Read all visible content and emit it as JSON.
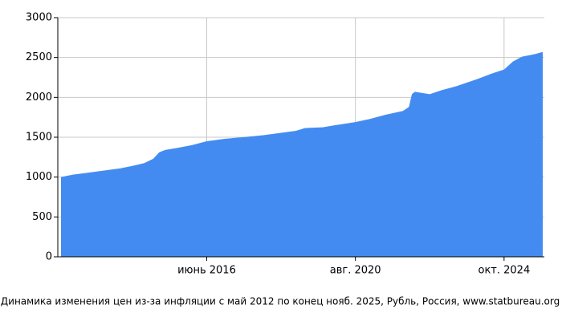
{
  "chart_data": {
    "type": "area",
    "caption": "Динамика изменения цен из-за инфляции с май 2012 по конец нояб. 2025, Рубль, Россия, www.statbureau.org",
    "color": "#448bf1",
    "x": [
      "2012-05",
      "2012-09",
      "2013-01",
      "2013-05",
      "2013-09",
      "2014-01",
      "2014-05",
      "2014-09",
      "2014-12",
      "2015-02",
      "2015-04",
      "2015-08",
      "2016-01",
      "2016-06",
      "2016-12",
      "2017-06",
      "2018-01",
      "2018-06",
      "2018-12",
      "2019-03",
      "2019-09",
      "2020-01",
      "2020-08",
      "2021-01",
      "2021-06",
      "2021-12",
      "2022-02",
      "2022-03",
      "2022-04",
      "2022-09",
      "2023-01",
      "2023-06",
      "2024-01",
      "2024-06",
      "2024-10",
      "2025-01",
      "2025-04",
      "2025-08",
      "2025-11"
    ],
    "values": [
      1000,
      1030,
      1050,
      1070,
      1090,
      1110,
      1140,
      1175,
      1230,
      1310,
      1340,
      1365,
      1400,
      1450,
      1480,
      1500,
      1525,
      1550,
      1580,
      1615,
      1625,
      1650,
      1690,
      1730,
      1780,
      1830,
      1880,
      2040,
      2070,
      2040,
      2090,
      2140,
      2230,
      2300,
      2350,
      2450,
      2510,
      2540,
      2570
    ],
    "xlim": [
      "2012-05",
      "2025-11"
    ],
    "xticks": [
      {
        "value": "2016-06",
        "label": "июнь 2016"
      },
      {
        "value": "2020-08",
        "label": "авг. 2020"
      },
      {
        "value": "2024-10",
        "label": "окт. 2024"
      }
    ],
    "ylim": [
      0,
      3000
    ],
    "yticks": [
      0,
      500,
      1000,
      1500,
      2000,
      2500,
      3000
    ],
    "grid": true
  }
}
